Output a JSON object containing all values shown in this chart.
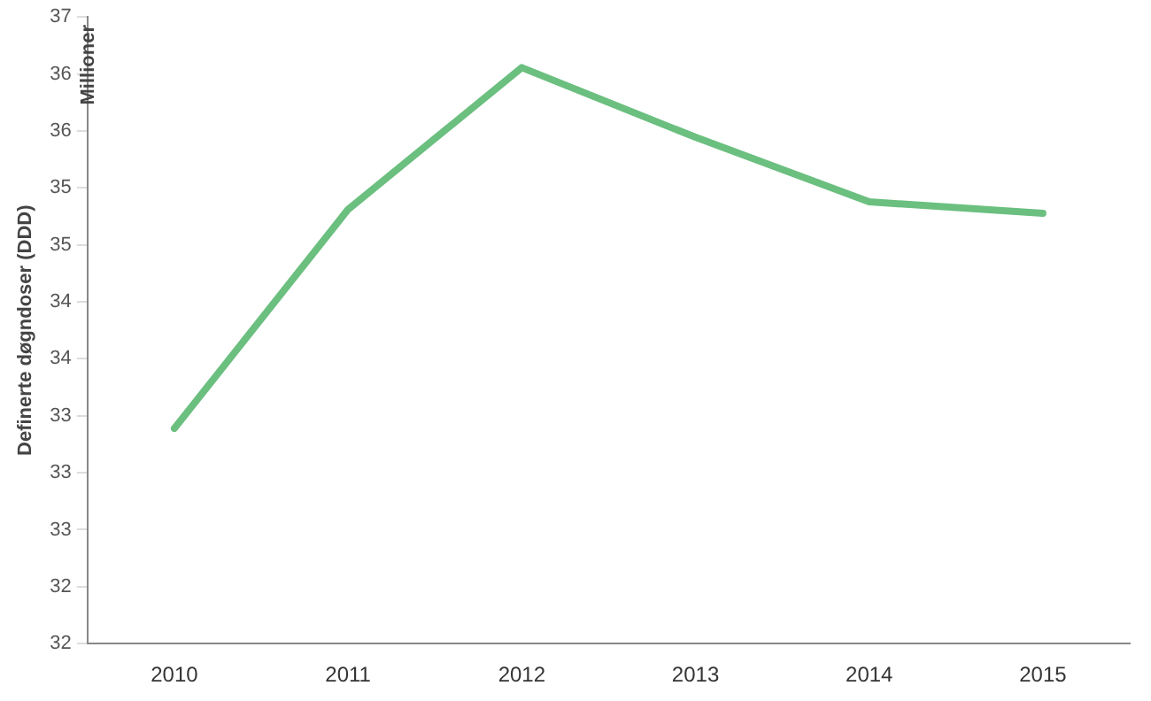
{
  "chart_data": {
    "type": "line",
    "ylabel": "Definerte døgndoser (DDD)",
    "annotations": [
      "Millioner"
    ],
    "categories": [
      "2010",
      "2011",
      "2012",
      "2013",
      "2014",
      "2015"
    ],
    "series": [
      {
        "color": "#6bbf7f",
        "values": [
          33.35,
          35.08,
          36.2,
          35.65,
          35.14,
          35.05
        ]
      }
    ],
    "ylim": [
      31.65,
      36.6
    ],
    "yticks": [
      {
        "value": 31.65,
        "label": "32"
      },
      {
        "value": 32.1,
        "label": "32"
      },
      {
        "value": 32.55,
        "label": "33"
      },
      {
        "value": 33.0,
        "label": "33"
      },
      {
        "value": 33.45,
        "label": "33"
      },
      {
        "value": 33.9,
        "label": "34"
      },
      {
        "value": 34.35,
        "label": "34"
      },
      {
        "value": 34.8,
        "label": "35"
      },
      {
        "value": 35.25,
        "label": "35"
      },
      {
        "value": 35.7,
        "label": "36"
      },
      {
        "value": 36.15,
        "label": "36"
      },
      {
        "value": 36.6,
        "label": "37"
      }
    ],
    "grid": false,
    "legend": false,
    "marker": "none",
    "line_style": "solid"
  }
}
